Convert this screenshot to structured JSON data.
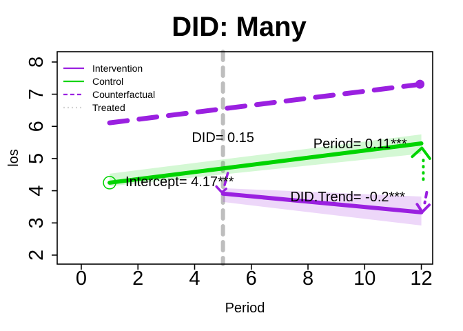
{
  "figure": {
    "title": "DID: Many"
  },
  "chart_data": {
    "type": "line",
    "title": "DID: Many",
    "xlabel": "Period",
    "ylabel": "los",
    "xlim": [
      -0.85,
      12.4
    ],
    "ylim": [
      1.72,
      8.32
    ],
    "xticks": [
      0,
      2,
      4,
      6,
      8,
      10,
      12
    ],
    "yticks": [
      2,
      3,
      4,
      5,
      6,
      7,
      8
    ],
    "grid": false,
    "legend": {
      "position": "top-left",
      "entries": [
        {
          "label": "Intervention",
          "color": "#9A20E0",
          "style": "solid"
        },
        {
          "label": "Control",
          "color": "#00D400",
          "style": "solid"
        },
        {
          "label": "Counterfactual",
          "color": "#9A20E0",
          "style": "dashed"
        },
        {
          "label": "Treated",
          "color": "#D3D3D3",
          "style": "dotted"
        }
      ]
    },
    "treatment_vline": {
      "x": 5,
      "color": "#BEBEBE",
      "width": 6,
      "dash": "12,11"
    },
    "series": [
      {
        "name": "Counterfactual",
        "color": "#9A20E0",
        "style": "dashed",
        "width": 7,
        "dash": "26,17",
        "points": [
          [
            1,
            6.11
          ],
          [
            12,
            7.31
          ]
        ],
        "end_dot": true
      },
      {
        "name": "Control",
        "color": "#00D400",
        "style": "solid",
        "width": 6,
        "points": [
          [
            1,
            4.25
          ],
          [
            12,
            5.47
          ]
        ],
        "start_open_circle": true,
        "band": {
          "color": "rgba(0,212,0,0.17)",
          "points": [
            [
              1,
              4.53
            ],
            [
              12,
              5.75
            ],
            [
              12,
              5.15
            ],
            [
              1,
              4.14
            ]
          ]
        }
      },
      {
        "name": "Intervention",
        "color": "#9A20E0",
        "style": "solid",
        "width": 6,
        "points": [
          [
            5,
            3.91
          ],
          [
            12,
            3.33
          ]
        ],
        "band": {
          "color": "rgba(154,32,224,0.18)",
          "points": [
            [
              5,
              4.08
            ],
            [
              12,
              3.82
            ],
            [
              12,
              2.92
            ],
            [
              5,
              3.65
            ]
          ]
        }
      }
    ],
    "annotations": [
      {
        "id": "did",
        "text": "DID= 0.15",
        "x": 5.0,
        "y": 5.66
      },
      {
        "id": "period",
        "text": "Period= 0.11***",
        "x": 9.84,
        "y": 5.47
      },
      {
        "id": "intercept",
        "text": "Intercept= 4.17***",
        "x": 3.47,
        "y": 4.29
      },
      {
        "id": "did-trend",
        "text": "DID.Trend= -0.2***",
        "x": 9.4,
        "y": 3.82
      }
    ],
    "arrows": [
      {
        "name": "effect-arrow-green",
        "color": "#00D400",
        "dash": "1,8",
        "width": 4,
        "line": [
          [
            12.07,
            4.95
          ],
          [
            12.07,
            4.19
          ]
        ],
        "head": [
          [
            11.68,
            5.06
          ],
          [
            12.02,
            5.33
          ],
          [
            12.3,
            5.0
          ]
        ]
      },
      {
        "name": "effect-arrow-purple",
        "color": "#9A20E0",
        "dash": "7,7",
        "width": 4,
        "line": [
          [
            12.19,
            3.95
          ],
          [
            12.12,
            3.62
          ]
        ],
        "head": [
          [
            11.85,
            3.58
          ],
          [
            12.03,
            3.34
          ],
          [
            12.28,
            3.56
          ]
        ]
      },
      {
        "name": "did-jump-arrow",
        "color": "#9A20E0",
        "dash": "6,6",
        "width": 3.5,
        "line": [
          [
            5.17,
            4.55
          ],
          [
            5.06,
            4.18
          ]
        ],
        "head": [
          [
            4.77,
            4.13
          ],
          [
            4.96,
            3.95
          ],
          [
            5.11,
            4.06
          ]
        ]
      }
    ]
  }
}
